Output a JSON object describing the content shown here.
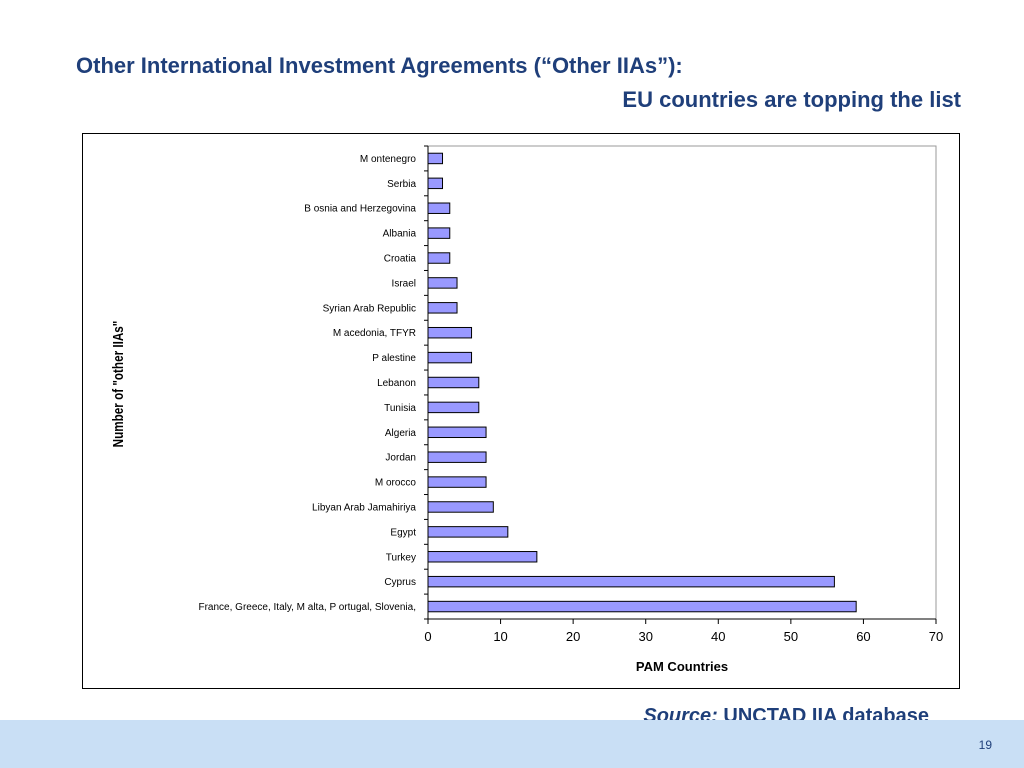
{
  "slide": {
    "title_line1": "Other International Investment Agreements (“Other IIAs”):",
    "title_line2": "EU countries are topping the list",
    "source_label": "Source:",
    "source_text": " UNCTAD IIA database",
    "page_number": "19"
  },
  "colors": {
    "title": "#1f3f7a",
    "bar_fill": "#9999ff",
    "bar_stroke": "#000000",
    "footer_band": "#c9dff5"
  },
  "chart_data": {
    "type": "bar",
    "orientation": "horizontal",
    "xlabel": "PAM Countries",
    "ylabel": "Number of \"other IIAs\"",
    "xlim": [
      0,
      70
    ],
    "xticks": [
      0,
      10,
      20,
      30,
      40,
      50,
      60,
      70
    ],
    "grid": false,
    "legend": "none",
    "categories": [
      "M ontenegro",
      "Serbia",
      "B osnia and Herzegovina",
      "Albania",
      "Croatia",
      "Israel",
      "Syrian Arab Republic",
      "M acedonia, TFYR",
      "P alestine",
      "Lebanon",
      "Tunisia",
      "Algeria",
      "Jordan",
      "M orocco",
      "Libyan Arab Jamahiriya",
      "Egypt",
      "Turkey",
      "Cyprus",
      "France, Greece, Italy, M alta, P ortugal, Slovenia,"
    ],
    "values": [
      2,
      2,
      3,
      3,
      3,
      4,
      4,
      6,
      6,
      7,
      7,
      8,
      8,
      8,
      9,
      11,
      15,
      56,
      59
    ]
  }
}
